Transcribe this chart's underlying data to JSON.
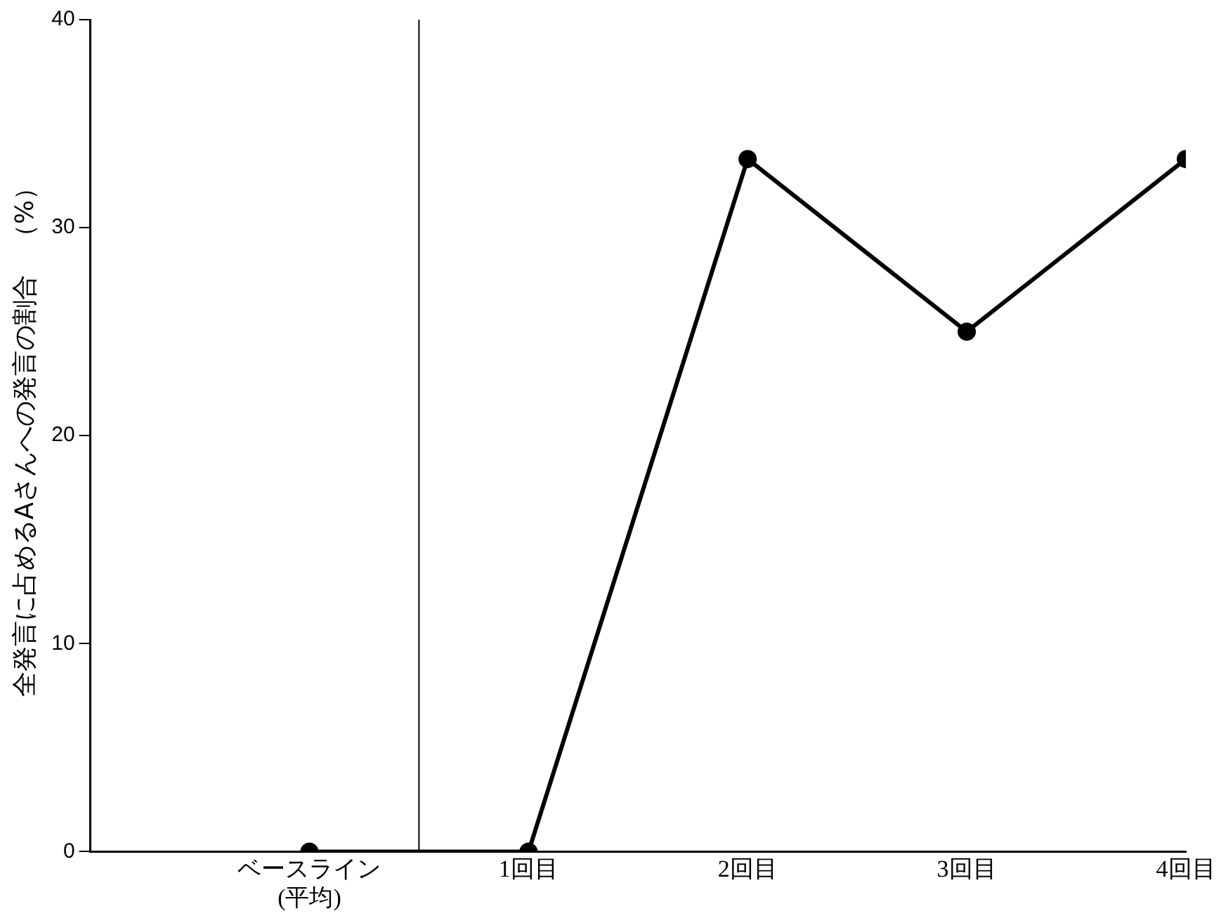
{
  "chart_data": {
    "type": "line",
    "ylabel": "全発言に占めるAさんへの発言の割合　（%）",
    "categories": [
      "ベースライン\n(平均)",
      "1回目",
      "2回目",
      "3回目",
      "4回目"
    ],
    "series": [
      {
        "color": "#000000",
        "values": [
          0,
          0,
          33.3,
          25,
          33.3
        ]
      }
    ],
    "ylim": [
      0,
      40
    ],
    "yticks": [
      0,
      10,
      20,
      30,
      40
    ],
    "grid": false,
    "legend": false,
    "marker": "circle",
    "line_style": "solid"
  }
}
